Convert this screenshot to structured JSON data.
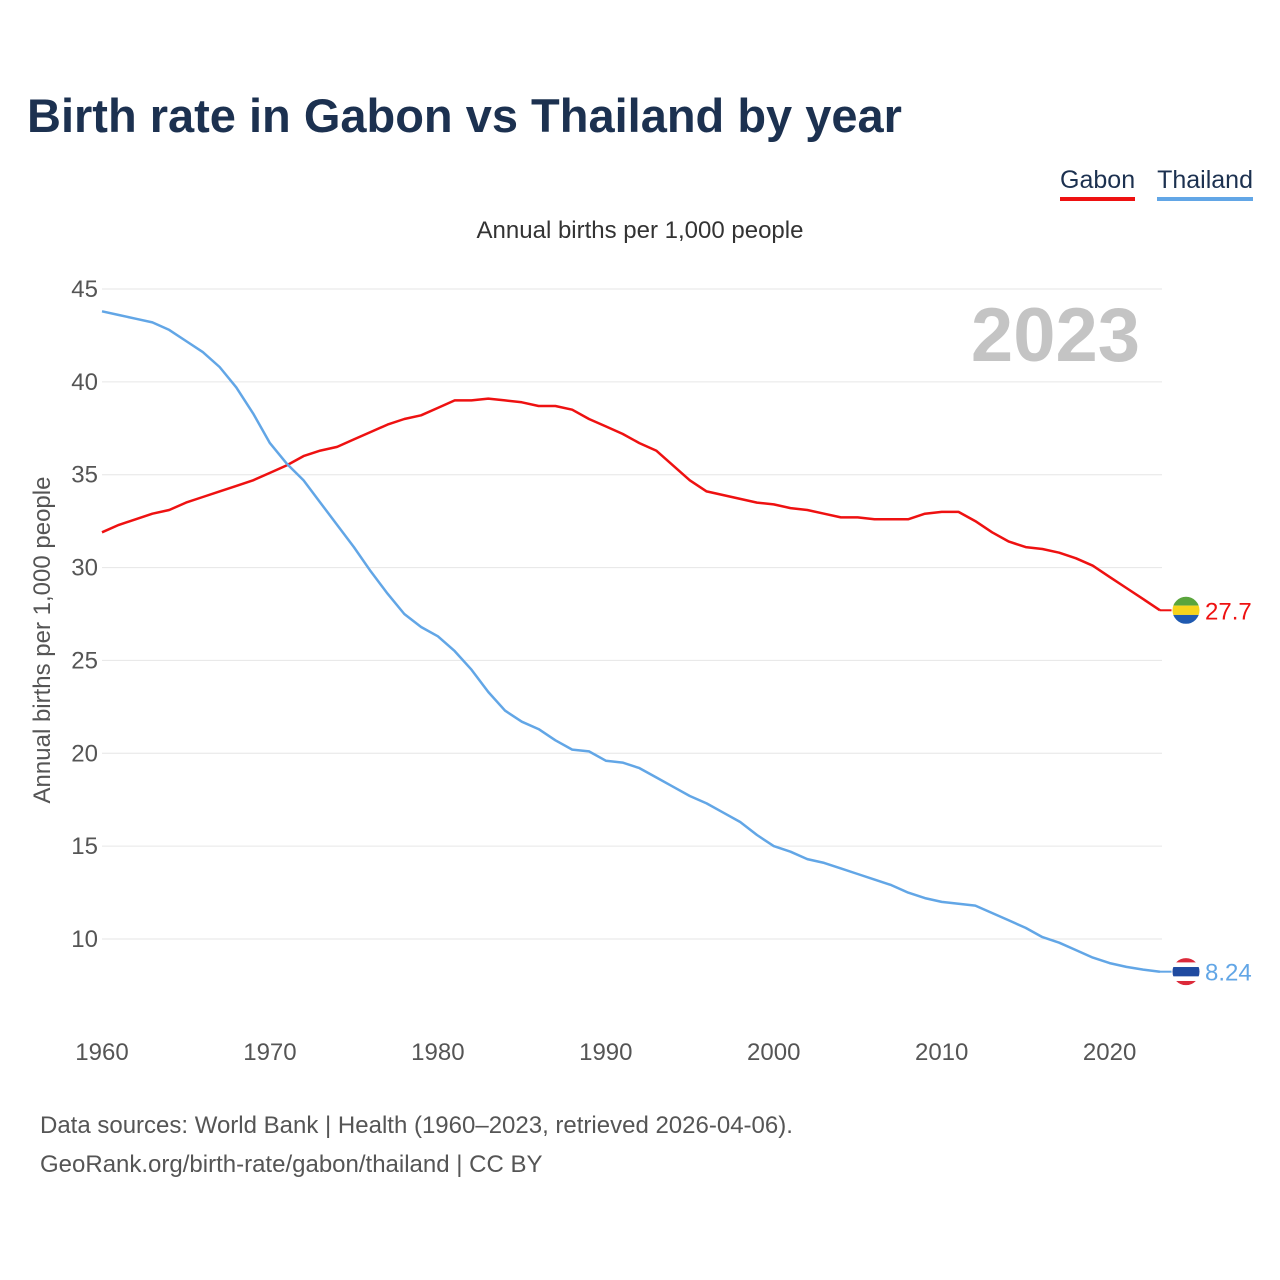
{
  "title": "Birth rate in Gabon vs Thailand by year",
  "subtitle": "Annual births per 1,000 people",
  "legend": [
    {
      "label": "Gabon",
      "color": "#ee1111"
    },
    {
      "label": "Thailand",
      "color": "#62a6e6"
    }
  ],
  "year_watermark": "2023",
  "footer": {
    "line1": "Data sources: World Bank | Health (1960–2023, retrieved 2026-04-06).",
    "line2": "GeoRank.org/birth-rate/gabon/thailand | CC BY"
  },
  "chart_data": {
    "type": "line",
    "title": "Birth rate in Gabon vs Thailand by year",
    "xlabel": "",
    "ylabel": "Annual births per 1,000 people",
    "xlim": [
      1960,
      2023
    ],
    "ylim": [
      5.5,
      45
    ],
    "yticks": [
      10,
      15,
      20,
      25,
      30,
      35,
      40,
      45
    ],
    "xticks": [
      1960,
      1970,
      1980,
      1990,
      2000,
      2010,
      2020
    ],
    "grid": true,
    "series": [
      {
        "name": "Gabon",
        "color": "#ee1111",
        "end_label": "27.7",
        "x": [
          1960,
          1961,
          1962,
          1963,
          1964,
          1965,
          1966,
          1967,
          1968,
          1969,
          1970,
          1971,
          1972,
          1973,
          1974,
          1975,
          1976,
          1977,
          1978,
          1979,
          1980,
          1981,
          1982,
          1983,
          1984,
          1985,
          1986,
          1987,
          1988,
          1989,
          1990,
          1991,
          1992,
          1993,
          1994,
          1995,
          1996,
          1997,
          1998,
          1999,
          2000,
          2001,
          2002,
          2003,
          2004,
          2005,
          2006,
          2007,
          2008,
          2009,
          2010,
          2011,
          2012,
          2013,
          2014,
          2015,
          2016,
          2017,
          2018,
          2019,
          2020,
          2021,
          2022,
          2023
        ],
        "values": [
          31.9,
          32.3,
          32.6,
          32.9,
          33.1,
          33.5,
          33.8,
          34.1,
          34.4,
          34.7,
          35.1,
          35.5,
          36.0,
          36.3,
          36.5,
          36.9,
          37.3,
          37.7,
          38.0,
          38.2,
          38.6,
          39.0,
          39.0,
          39.1,
          39.0,
          38.9,
          38.7,
          38.7,
          38.5,
          38.0,
          37.6,
          37.2,
          36.7,
          36.3,
          35.5,
          34.7,
          34.1,
          33.9,
          33.7,
          33.5,
          33.4,
          33.2,
          33.1,
          32.9,
          32.7,
          32.7,
          32.6,
          32.6,
          32.6,
          32.9,
          33.0,
          33.0,
          32.5,
          31.9,
          31.4,
          31.1,
          31.0,
          30.8,
          30.5,
          30.1,
          29.5,
          28.9,
          28.3,
          27.7
        ]
      },
      {
        "name": "Thailand",
        "color": "#62a6e6",
        "end_label": "8.24",
        "x": [
          1960,
          1961,
          1962,
          1963,
          1964,
          1965,
          1966,
          1967,
          1968,
          1969,
          1970,
          1971,
          1972,
          1973,
          1974,
          1975,
          1976,
          1977,
          1978,
          1979,
          1980,
          1981,
          1982,
          1983,
          1984,
          1985,
          1986,
          1987,
          1988,
          1989,
          1990,
          1991,
          1992,
          1993,
          1994,
          1995,
          1996,
          1997,
          1998,
          1999,
          2000,
          2001,
          2002,
          2003,
          2004,
          2005,
          2006,
          2007,
          2008,
          2009,
          2010,
          2011,
          2012,
          2013,
          2014,
          2015,
          2016,
          2017,
          2018,
          2019,
          2020,
          2021,
          2022,
          2023
        ],
        "values": [
          43.8,
          43.6,
          43.4,
          43.2,
          42.8,
          42.2,
          41.6,
          40.8,
          39.7,
          38.3,
          36.7,
          35.6,
          34.7,
          33.5,
          32.3,
          31.1,
          29.8,
          28.6,
          27.5,
          26.8,
          26.3,
          25.5,
          24.5,
          23.3,
          22.3,
          21.7,
          21.3,
          20.7,
          20.2,
          20.1,
          19.6,
          19.5,
          19.2,
          18.7,
          18.2,
          17.7,
          17.3,
          16.8,
          16.3,
          15.6,
          15.0,
          14.7,
          14.3,
          14.1,
          13.8,
          13.5,
          13.2,
          12.9,
          12.5,
          12.2,
          12.0,
          11.9,
          11.8,
          11.4,
          11.0,
          10.6,
          10.1,
          9.8,
          9.4,
          9.0,
          8.7,
          8.5,
          8.35,
          8.24
        ]
      }
    ]
  }
}
